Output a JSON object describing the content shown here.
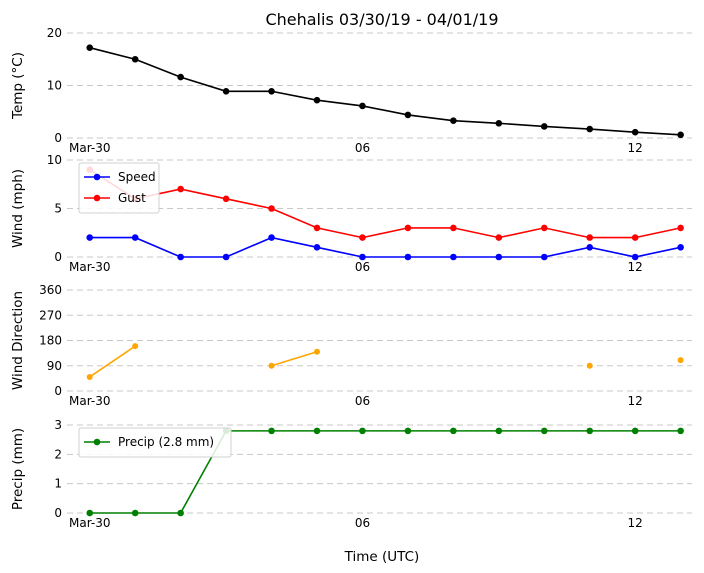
{
  "chart_data": {
    "type": "line",
    "title": "Chehalis 03/30/19 - 04/01/19",
    "xlabel": "Time (UTC)",
    "x_ticks": [
      {
        "t": 0,
        "label": "Mar-30"
      },
      {
        "t": 6,
        "label": "06"
      },
      {
        "t": 12,
        "label": "12"
      }
    ],
    "x_times": [
      0,
      1,
      2,
      3,
      4,
      5,
      6,
      7,
      8,
      9,
      10,
      11,
      12,
      13
    ],
    "xlim": [
      -0.5,
      13.25
    ],
    "panels": [
      {
        "ylabel": "Temp (°C)",
        "ylim": [
          0,
          20
        ],
        "yticks": [
          0,
          10,
          20
        ],
        "legend": false,
        "series": [
          {
            "color": "#000000",
            "marker": true,
            "line": true,
            "values": [
              17.2,
              15.0,
              11.6,
              8.9,
              8.9,
              7.2,
              6.1,
              4.4,
              3.3,
              2.8,
              2.2,
              1.7,
              1.1,
              0.6
            ]
          }
        ]
      },
      {
        "ylabel": "Wind (mph)",
        "ylim": [
          0,
          10
        ],
        "yticks": [
          0,
          5,
          10
        ],
        "legend": true,
        "series": [
          {
            "name": "Speed",
            "color": "#0000ff",
            "marker": true,
            "line": true,
            "values": [
              2,
              2,
              0,
              0,
              2,
              1,
              0,
              0,
              0,
              0,
              0,
              1,
              0,
              1
            ]
          },
          {
            "name": "Gust",
            "color": "#ff0000",
            "marker": true,
            "line": true,
            "values": [
              9,
              6,
              7,
              6,
              5,
              3,
              2,
              3,
              3,
              2,
              3,
              2,
              2,
              3
            ]
          }
        ]
      },
      {
        "ylabel": "Wind Direction",
        "ylim": [
          0,
          360
        ],
        "yticks": [
          0,
          90,
          180,
          270,
          360
        ],
        "legend": false,
        "series": [
          {
            "color": "#ffa500",
            "marker": true,
            "line": true,
            "marker_size": 3,
            "values": [
              50,
              160,
              null,
              null,
              90,
              140,
              null,
              null,
              null,
              null,
              null,
              90,
              null,
              110
            ]
          }
        ]
      },
      {
        "ylabel": "Precip (mm)",
        "ylim": [
          0,
          3
        ],
        "yticks": [
          0,
          1,
          2,
          3
        ],
        "legend": true,
        "series": [
          {
            "name": "Precip (2.8 mm)",
            "color": "#008000",
            "marker": true,
            "line": true,
            "values": [
              0,
              0,
              0,
              2.8,
              2.8,
              2.8,
              2.8,
              2.8,
              2.8,
              2.8,
              2.8,
              2.8,
              2.8,
              2.8
            ]
          }
        ]
      }
    ],
    "grid": true,
    "legend_placement": "top-left"
  }
}
